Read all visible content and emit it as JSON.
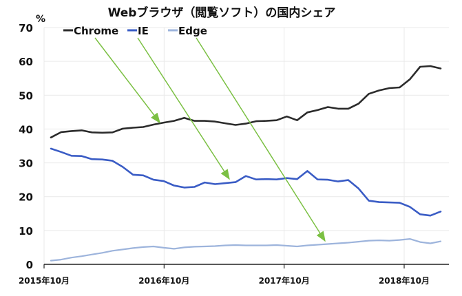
{
  "chart_data": {
    "type": "line",
    "title": "Webブラウザ（閲覧ソフト）の国内シェア",
    "unit_label": "%",
    "ylim": [
      0,
      70
    ],
    "yticks": [
      0,
      10,
      20,
      30,
      40,
      50,
      60,
      70
    ],
    "x_tick_labels": [
      "2015年10月",
      "2016年10月",
      "2017年10月",
      "2018年10月"
    ],
    "x_tick_months": [
      0,
      12,
      24,
      36
    ],
    "x_range_months": [
      0,
      41
    ],
    "grid": true,
    "legend": "top-left",
    "series": [
      {
        "name": "Chrome",
        "color": "#2b2b2b",
        "values": [
          37.5,
          39.1,
          39.4,
          39.6,
          39.0,
          38.9,
          39.0,
          40.1,
          40.4,
          40.6,
          41.3,
          41.9,
          42.4,
          43.3,
          42.4,
          42.4,
          42.2,
          41.7,
          41.2,
          41.6,
          42.3,
          42.4,
          42.6,
          43.7,
          42.6,
          44.9,
          45.6,
          46.5,
          46.0,
          46.0,
          47.5,
          50.4,
          51.4,
          52.1,
          52.3,
          54.7,
          58.4,
          58.6,
          57.9
        ]
      },
      {
        "name": "IE",
        "color": "#3a5cc5",
        "values": [
          34.2,
          33.2,
          32.1,
          32.0,
          31.1,
          31.0,
          30.6,
          28.8,
          26.5,
          26.3,
          25.0,
          24.6,
          23.3,
          22.7,
          22.9,
          24.2,
          23.7,
          24.0,
          24.3,
          26.1,
          25.1,
          25.2,
          25.1,
          25.5,
          25.2,
          27.6,
          25.1,
          25.0,
          24.5,
          24.9,
          22.4,
          18.8,
          18.4,
          18.3,
          18.2,
          17.0,
          14.8,
          14.4,
          15.6
        ]
      },
      {
        "name": "Edge",
        "color": "#9db4dc",
        "values": [
          1.1,
          1.4,
          2.0,
          2.4,
          2.9,
          3.4,
          4.0,
          4.4,
          4.8,
          5.1,
          5.3,
          4.9,
          4.6,
          5.0,
          5.2,
          5.3,
          5.4,
          5.6,
          5.7,
          5.6,
          5.6,
          5.6,
          5.7,
          5.5,
          5.3,
          5.6,
          5.8,
          6.0,
          6.2,
          6.4,
          6.7,
          7.0,
          7.1,
          7.0,
          7.2,
          7.5,
          6.6,
          6.2,
          6.8
        ]
      }
    ]
  }
}
